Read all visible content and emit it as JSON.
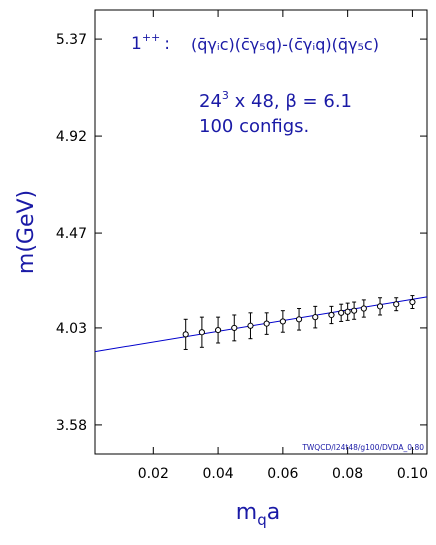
{
  "chart_data": {
    "type": "scatter",
    "xlabel_base": "m",
    "xlabel_sub": "q",
    "xlabel_tail": "a",
    "ylabel": "m(GeV)",
    "xlim": [
      0.002,
      0.1045
    ],
    "ylim": [
      3.445,
      5.505
    ],
    "xticks": [
      0.02,
      0.04,
      0.06,
      0.08,
      0.1
    ],
    "xtick_labels": [
      "0.02",
      "0.04",
      "0.06",
      "0.08",
      "0.10"
    ],
    "yticks": [
      3.58,
      4.03,
      4.47,
      4.92,
      5.37
    ],
    "ytick_labels": [
      "3.58",
      "4.03",
      "4.47",
      "4.92",
      "5.37"
    ],
    "annotation_state": "1",
    "annotation_state_sup": "++",
    "annotation_colon": ":",
    "annotation_operator": "(q̄γᵢc)(c̄γ₅q)-(c̄γᵢq)(q̄γ₅c)",
    "lattice_base": "24",
    "lattice_exp": "3",
    "lattice_rest": " x 48, β = 6.1",
    "configs": "100 configs.",
    "footer_tag": "TWQCD/l24t48/g100/DVDA_0.80",
    "points": [
      {
        "x": 0.03,
        "y": 4.0,
        "err": 0.07
      },
      {
        "x": 0.035,
        "y": 4.01,
        "err": 0.07
      },
      {
        "x": 0.04,
        "y": 4.02,
        "err": 0.06
      },
      {
        "x": 0.045,
        "y": 4.03,
        "err": 0.06
      },
      {
        "x": 0.05,
        "y": 4.04,
        "err": 0.06
      },
      {
        "x": 0.055,
        "y": 4.05,
        "err": 0.05
      },
      {
        "x": 0.06,
        "y": 4.06,
        "err": 0.05
      },
      {
        "x": 0.065,
        "y": 4.07,
        "err": 0.05
      },
      {
        "x": 0.07,
        "y": 4.08,
        "err": 0.05
      },
      {
        "x": 0.075,
        "y": 4.09,
        "err": 0.04
      },
      {
        "x": 0.078,
        "y": 4.1,
        "err": 0.04
      },
      {
        "x": 0.08,
        "y": 4.105,
        "err": 0.04
      },
      {
        "x": 0.082,
        "y": 4.11,
        "err": 0.04
      },
      {
        "x": 0.085,
        "y": 4.12,
        "err": 0.04
      },
      {
        "x": 0.09,
        "y": 4.13,
        "err": 0.04
      },
      {
        "x": 0.095,
        "y": 4.14,
        "err": 0.03
      },
      {
        "x": 0.1,
        "y": 4.15,
        "err": 0.03
      }
    ],
    "fit_line": {
      "x": [
        0.002,
        0.1045
      ],
      "y": [
        3.92,
        4.174
      ]
    },
    "colors": {
      "fit": "#0000cc",
      "text": "#1a1aa6",
      "points": "#000000"
    }
  }
}
